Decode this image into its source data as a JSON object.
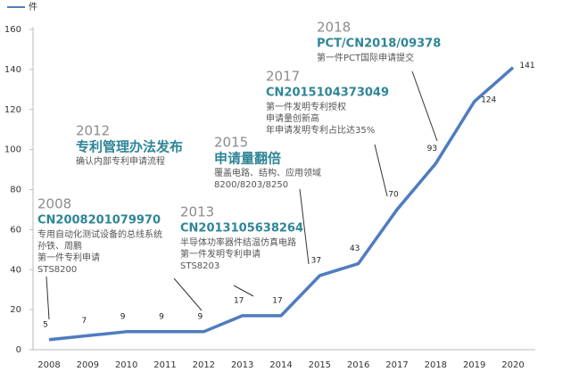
{
  "chart_data": {
    "type": "line",
    "categories": [
      "2008",
      "2009",
      "2010",
      "2011",
      "2012",
      "2013",
      "2014",
      "2015",
      "2016",
      "2017",
      "2018",
      "2019",
      "2020"
    ],
    "series": [
      {
        "name": "件",
        "color": "#4f7cc0",
        "values": [
          5,
          7,
          9,
          9,
          9,
          17,
          17,
          37,
          43,
          70,
          93,
          124,
          141
        ]
      }
    ],
    "ylim": [
      0,
      160
    ],
    "yticks": [
      0,
      20,
      40,
      60,
      80,
      100,
      120,
      140,
      160
    ],
    "legend": "top-left",
    "annotations": [
      {
        "year": "2008",
        "headline": "CN2008201079970",
        "lines": [
          "专用自动化测试设备的总线系统",
          "孙铁、周鹏",
          "第一件专利申请",
          "STS8200"
        ]
      },
      {
        "year": "2012",
        "headline": "专利管理办法发布",
        "lines": [
          "确认内部专利申请流程"
        ]
      },
      {
        "year": "2013",
        "headline": "CN2013105638264",
        "lines": [
          "半导体功率器件结温仿真电路",
          "第一件发明专利申请",
          "STS8203"
        ]
      },
      {
        "year": "2015",
        "headline": "申请量翻倍",
        "lines": [
          "覆盖电路、结构、应用领域",
          "8200/8203/8250"
        ]
      },
      {
        "year": "2017",
        "headline": "CN2015104373049",
        "lines": [
          "第一件发明专利授权",
          "申请量创新高",
          "年申请发明专利占比达35%"
        ]
      },
      {
        "year": "2018",
        "headline": "PCT/CN2018/09378",
        "lines": [
          "第一件PCT国际申请提交"
        ]
      }
    ]
  }
}
